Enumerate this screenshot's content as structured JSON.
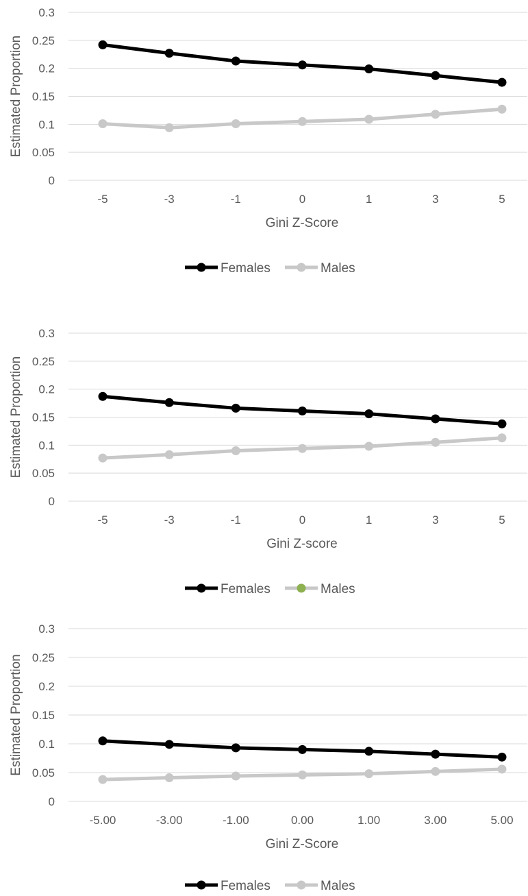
{
  "colors": {
    "females": "#000000",
    "males": "#c8c8c8",
    "grid": "#d9d9d9",
    "text": "#595959",
    "males_marker_alt": "#8db050"
  },
  "chart_data": [
    {
      "type": "line",
      "categories": [
        "-5",
        "-3",
        "-1",
        "0",
        "1",
        "3",
        "5"
      ],
      "xlabel": "Gini Z-Score",
      "ylabel": "Estimated Proportion",
      "ylim": [
        0,
        0.3
      ],
      "yticks": [
        "0",
        "0.05",
        "0.1",
        "0.15",
        "0.2",
        "0.25",
        "0.3"
      ],
      "grid": true,
      "legend_position": "bottom",
      "series": [
        {
          "name": "Females",
          "values": [
            0.242,
            0.227,
            0.213,
            0.206,
            0.199,
            0.187,
            0.175
          ]
        },
        {
          "name": "Males",
          "values": [
            0.101,
            0.094,
            0.101,
            0.105,
            0.109,
            0.118,
            0.127
          ]
        }
      ]
    },
    {
      "type": "line",
      "categories": [
        "-5",
        "-3",
        "-1",
        "0",
        "1",
        "3",
        "5"
      ],
      "xlabel": "Gini Z-score",
      "ylabel": "Estimated Proportion",
      "ylim": [
        0,
        0.3
      ],
      "yticks": [
        "0",
        "0.05",
        "0.1",
        "0.15",
        "0.2",
        "0.25",
        "0.3"
      ],
      "grid": true,
      "legend_position": "bottom",
      "series": [
        {
          "name": "Females",
          "values": [
            0.187,
            0.176,
            0.166,
            0.161,
            0.156,
            0.147,
            0.138
          ]
        },
        {
          "name": "Males",
          "values": [
            0.077,
            0.083,
            0.09,
            0.094,
            0.098,
            0.105,
            0.113
          ]
        }
      ]
    },
    {
      "type": "line",
      "categories": [
        "-5.00",
        "-3.00",
        "-1.00",
        "0.00",
        "1.00",
        "3.00",
        "5.00"
      ],
      "xlabel": "Gini Z-Score",
      "ylabel": "Estimated Proportion",
      "ylim": [
        0,
        0.3
      ],
      "yticks": [
        "0",
        "0.05",
        "0.1",
        "0.15",
        "0.2",
        "0.25",
        "0.3"
      ],
      "grid": true,
      "legend_position": "bottom",
      "series": [
        {
          "name": "Females",
          "values": [
            0.105,
            0.099,
            0.093,
            0.09,
            0.087,
            0.082,
            0.077
          ]
        },
        {
          "name": "Males",
          "values": [
            0.038,
            0.041,
            0.044,
            0.046,
            0.048,
            0.052,
            0.056
          ]
        }
      ]
    }
  ]
}
